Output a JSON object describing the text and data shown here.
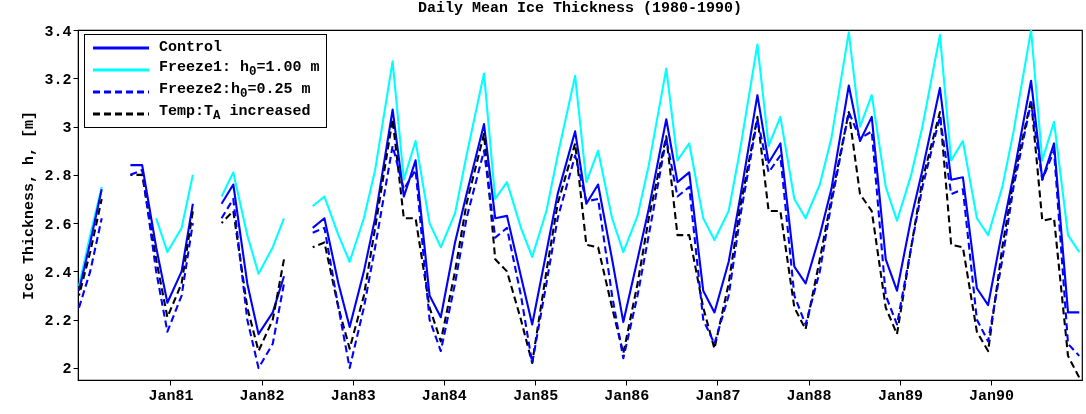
{
  "chart_data": {
    "type": "line",
    "title": "Daily Mean Ice Thickness (1980-1990)",
    "ylabel": "Ice Thickness, h,  [m]",
    "x": [
      "1980-01-01",
      "1980-02-15",
      "1980-04-01",
      "1980-06-10",
      "1980-07-25",
      "1980-09-10",
      "1980-11-05",
      "1980-12-20",
      "1981-02-15",
      "1981-04-01",
      "1981-06-10",
      "1981-07-25",
      "1981-09-10",
      "1981-11-05",
      "1981-12-20",
      "1982-02-15",
      "1982-04-01",
      "1982-06-10",
      "1982-07-25",
      "1982-09-10",
      "1982-11-05",
      "1982-12-20",
      "1983-02-15",
      "1983-04-01",
      "1983-06-10",
      "1983-07-25",
      "1983-09-10",
      "1983-11-05",
      "1983-12-20",
      "1984-02-15",
      "1984-04-01",
      "1984-06-10",
      "1984-07-25",
      "1984-09-10",
      "1984-11-05",
      "1984-12-20",
      "1985-02-15",
      "1985-04-01",
      "1985-06-10",
      "1985-07-25",
      "1985-09-10",
      "1985-11-05",
      "1985-12-20",
      "1986-02-15",
      "1986-04-01",
      "1986-06-10",
      "1986-07-25",
      "1986-09-10",
      "1986-11-05",
      "1986-12-20",
      "1987-02-15",
      "1987-04-01",
      "1987-06-10",
      "1987-07-25",
      "1987-09-10",
      "1987-11-05",
      "1987-12-20",
      "1988-02-15",
      "1988-04-01",
      "1988-06-10",
      "1988-07-25",
      "1988-09-10",
      "1988-11-05",
      "1988-12-20",
      "1989-02-15",
      "1989-04-01",
      "1989-06-10",
      "1989-07-25",
      "1989-09-10",
      "1989-11-05",
      "1989-12-20",
      "1990-02-15",
      "1990-04-01",
      "1990-06-10",
      "1990-07-25",
      "1990-09-10",
      "1990-11-05",
      "1990-12-20"
    ],
    "series": [
      {
        "name": "Control",
        "color": "#0000ff",
        "line_style": "solid",
        "values": [
          2.32,
          2.52,
          2.74,
          null,
          2.84,
          2.84,
          2.5,
          2.27,
          2.4,
          2.68,
          null,
          2.68,
          2.76,
          2.35,
          2.14,
          2.23,
          2.38,
          null,
          2.58,
          2.62,
          2.35,
          2.17,
          2.4,
          2.62,
          3.07,
          2.71,
          2.86,
          2.3,
          2.21,
          2.52,
          2.72,
          3.01,
          2.62,
          2.63,
          2.38,
          2.18,
          2.48,
          2.72,
          2.98,
          2.68,
          2.76,
          2.45,
          2.19,
          2.45,
          2.66,
          3.03,
          2.77,
          2.81,
          2.32,
          2.23,
          2.44,
          2.7,
          3.13,
          2.85,
          2.93,
          2.42,
          2.35,
          2.55,
          2.74,
          3.17,
          2.94,
          3.04,
          2.45,
          2.32,
          2.62,
          2.82,
          3.16,
          2.78,
          2.79,
          2.33,
          2.26,
          2.57,
          2.8,
          3.19,
          2.78,
          2.93,
          2.23,
          2.23
        ]
      },
      {
        "name": "Freeze1: h$_{0}$=1.00 m",
        "color": "#00ffff",
        "line_style": "solid",
        "values": [
          2.34,
          2.55,
          2.75,
          null,
          null,
          null,
          2.62,
          2.48,
          2.58,
          2.8,
          null,
          2.71,
          2.81,
          2.55,
          2.39,
          2.5,
          2.62,
          null,
          2.67,
          2.71,
          2.55,
          2.44,
          2.62,
          2.82,
          3.27,
          2.78,
          2.94,
          2.6,
          2.5,
          2.64,
          2.88,
          3.22,
          2.7,
          2.77,
          2.58,
          2.46,
          2.65,
          2.88,
          3.21,
          2.77,
          2.9,
          2.62,
          2.48,
          2.63,
          2.84,
          3.24,
          2.86,
          2.93,
          2.62,
          2.53,
          2.65,
          2.9,
          3.34,
          2.92,
          3.04,
          2.7,
          2.62,
          2.76,
          2.95,
          3.39,
          3.0,
          3.13,
          2.75,
          2.61,
          2.8,
          3.0,
          3.38,
          2.86,
          2.94,
          2.62,
          2.55,
          2.75,
          2.98,
          3.4,
          2.86,
          3.02,
          2.55,
          2.48
        ]
      },
      {
        "name": "Freeze2:h$_{0}$=0.25 m",
        "color": "#0000ff",
        "line_style": "dashed",
        "values": [
          2.25,
          2.4,
          2.62,
          null,
          2.8,
          2.82,
          2.4,
          2.15,
          2.3,
          2.6,
          null,
          2.62,
          2.7,
          2.2,
          2.0,
          2.1,
          2.35,
          null,
          2.56,
          2.58,
          2.25,
          2.0,
          2.25,
          2.5,
          2.92,
          2.74,
          2.82,
          2.2,
          2.07,
          2.35,
          2.62,
          2.9,
          2.54,
          2.58,
          2.3,
          2.02,
          2.35,
          2.62,
          2.88,
          2.69,
          2.7,
          2.3,
          2.04,
          2.3,
          2.55,
          2.95,
          2.71,
          2.75,
          2.2,
          2.1,
          2.3,
          2.62,
          3.03,
          2.81,
          2.88,
          2.3,
          2.18,
          2.4,
          2.68,
          3.06,
          2.95,
          2.98,
          2.3,
          2.18,
          2.5,
          2.75,
          3.04,
          2.72,
          2.74,
          2.2,
          2.11,
          2.45,
          2.75,
          3.1,
          2.78,
          2.9,
          2.1,
          2.05
        ]
      },
      {
        "name": "Temp:T$_{A}$ increased",
        "color": "#000000",
        "line_style": "dashed",
        "values": [
          2.3,
          2.48,
          2.7,
          null,
          2.8,
          2.8,
          2.45,
          2.21,
          2.35,
          2.65,
          null,
          2.6,
          2.65,
          2.25,
          2.07,
          2.2,
          2.45,
          null,
          2.5,
          2.52,
          2.25,
          2.08,
          2.3,
          2.58,
          3.03,
          2.62,
          2.62,
          2.25,
          2.11,
          2.4,
          2.68,
          2.97,
          2.45,
          2.4,
          2.2,
          2.02,
          2.4,
          2.68,
          2.93,
          2.51,
          2.5,
          2.25,
          2.06,
          2.35,
          2.62,
          2.96,
          2.55,
          2.55,
          2.25,
          2.08,
          2.35,
          2.66,
          3.04,
          2.65,
          2.65,
          2.25,
          2.16,
          2.45,
          2.7,
          3.06,
          2.72,
          2.65,
          2.25,
          2.14,
          2.5,
          2.78,
          3.06,
          2.51,
          2.5,
          2.15,
          2.07,
          2.5,
          2.78,
          3.11,
          2.61,
          2.62,
          2.05,
          1.96
        ]
      }
    ],
    "xlim": [
      "1979-12-28",
      "1990-12-31"
    ],
    "xticks": [
      {
        "value": "1981-01-01",
        "label": "Jan81"
      },
      {
        "value": "1982-01-01",
        "label": "Jan82"
      },
      {
        "value": "1983-01-01",
        "label": "Jan83"
      },
      {
        "value": "1984-01-01",
        "label": "Jan84"
      },
      {
        "value": "1985-01-01",
        "label": "Jan85"
      },
      {
        "value": "1986-01-01",
        "label": "Jan86"
      },
      {
        "value": "1987-01-01",
        "label": "Jan87"
      },
      {
        "value": "1988-01-01",
        "label": "Jan88"
      },
      {
        "value": "1989-01-01",
        "label": "Jan89"
      },
      {
        "value": "1990-01-01",
        "label": "Jan90"
      }
    ],
    "ylim": [
      1.95,
      3.4
    ],
    "yticks": [
      2,
      2.2,
      2.4,
      2.6,
      2.8,
      3,
      3.2,
      3.4
    ],
    "grid": false,
    "legend": "top left"
  }
}
